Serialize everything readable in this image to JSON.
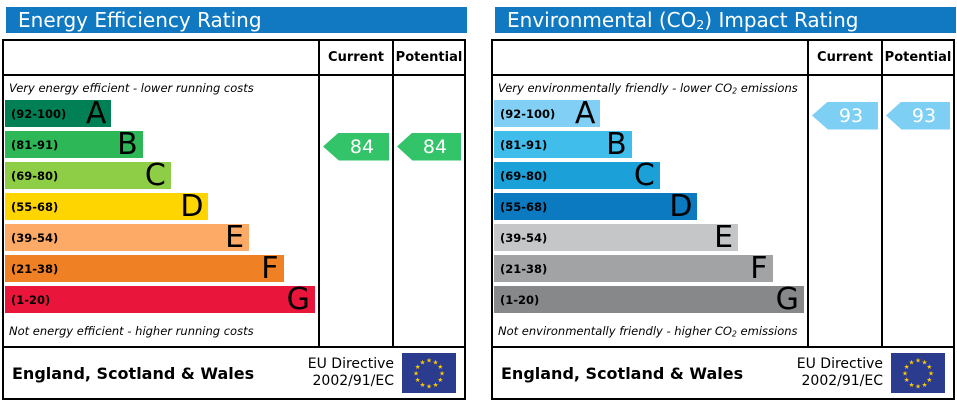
{
  "colors": {
    "header_blue": "#1079c2",
    "border_black": "#000000",
    "eu_flag_blue": "#2b3c8f",
    "eu_star_yellow": "#ffcc00",
    "arrow_text_white": "#ffffff"
  },
  "panels": [
    {
      "title": {
        "pre": "Energy Efficiency Rating",
        "sub": "",
        "post": ""
      },
      "columns": {
        "current": "Current",
        "potential": "Potential"
      },
      "captions": {
        "top": {
          "pre": "Very energy efficient - lower running costs",
          "sub": "",
          "post": ""
        },
        "bottom": {
          "pre": "Not energy efficient - higher running costs",
          "sub": "",
          "post": ""
        }
      },
      "bands": [
        {
          "range": "(92-100)",
          "letter": "A",
          "color": "#008054",
          "width_pct": 34
        },
        {
          "range": "(81-91)",
          "letter": "B",
          "color": "#2db757",
          "width_pct": 44
        },
        {
          "range": "(69-80)",
          "letter": "C",
          "color": "#8dce46",
          "width_pct": 53
        },
        {
          "range": "(55-68)",
          "letter": "D",
          "color": "#ffd500",
          "width_pct": 65
        },
        {
          "range": "(39-54)",
          "letter": "E",
          "color": "#fcaa65",
          "width_pct": 78
        },
        {
          "range": "(21-38)",
          "letter": "F",
          "color": "#ef8023",
          "width_pct": 89
        },
        {
          "range": "(1-20)",
          "letter": "G",
          "color": "#e9153b",
          "width_pct": 99
        }
      ],
      "current": {
        "value": "84",
        "band_index": 1,
        "color": "#33c368"
      },
      "potential": {
        "value": "84",
        "band_index": 1,
        "color": "#33c368"
      },
      "footer": {
        "region": "England, Scotland & Wales",
        "directive_line1": "EU Directive",
        "directive_line2": "2002/91/EC"
      }
    },
    {
      "title": {
        "pre": "Environmental (CO",
        "sub": "2",
        "post": ") Impact Rating"
      },
      "columns": {
        "current": "Current",
        "potential": "Potential"
      },
      "captions": {
        "top": {
          "pre": "Very environmentally friendly - lower CO",
          "sub": "2",
          "post": " emissions"
        },
        "bottom": {
          "pre": "Not environmentally friendly - higher CO",
          "sub": "2",
          "post": " emissions"
        }
      },
      "bands": [
        {
          "range": "(92-100)",
          "letter": "A",
          "color": "#81cff4",
          "width_pct": 34
        },
        {
          "range": "(81-91)",
          "letter": "B",
          "color": "#41bdec",
          "width_pct": 44
        },
        {
          "range": "(69-80)",
          "letter": "C",
          "color": "#1ba0d8",
          "width_pct": 53
        },
        {
          "range": "(55-68)",
          "letter": "D",
          "color": "#0c7ac0",
          "width_pct": 65
        },
        {
          "range": "(39-54)",
          "letter": "E",
          "color": "#c5c6c8",
          "width_pct": 78
        },
        {
          "range": "(21-38)",
          "letter": "F",
          "color": "#a2a3a5",
          "width_pct": 89
        },
        {
          "range": "(1-20)",
          "letter": "G",
          "color": "#87888a",
          "width_pct": 99
        }
      ],
      "current": {
        "value": "93",
        "band_index": 0,
        "color": "#7ecff4"
      },
      "potential": {
        "value": "93",
        "band_index": 0,
        "color": "#7ecff4"
      },
      "footer": {
        "region": "England, Scotland & Wales",
        "directive_line1": "EU Directive",
        "directive_line2": "2002/91/EC"
      }
    }
  ],
  "chart_data": [
    {
      "type": "bar",
      "title": "Energy Efficiency Rating",
      "orientation": "horizontal",
      "categories": [
        "A (92-100)",
        "B (81-91)",
        "C (69-80)",
        "D (55-68)",
        "E (39-54)",
        "F (21-38)",
        "G (1-20)"
      ],
      "bar_lengths_pct": [
        34,
        44,
        53,
        65,
        78,
        89,
        99
      ],
      "band_colors": [
        "#008054",
        "#2db757",
        "#8dce46",
        "#ffd500",
        "#fcaa65",
        "#ef8023",
        "#e9153b"
      ],
      "current_value": 84,
      "current_band": "B",
      "potential_value": 84,
      "potential_band": "B",
      "top_note": "Very energy efficient - lower running costs",
      "bottom_note": "Not energy efficient - higher running costs",
      "footer": "England, Scotland & Wales | EU Directive 2002/91/EC"
    },
    {
      "type": "bar",
      "title": "Environmental (CO2) Impact Rating",
      "orientation": "horizontal",
      "categories": [
        "A (92-100)",
        "B (81-91)",
        "C (69-80)",
        "D (55-68)",
        "E (39-54)",
        "F (21-38)",
        "G (1-20)"
      ],
      "bar_lengths_pct": [
        34,
        44,
        53,
        65,
        78,
        89,
        99
      ],
      "band_colors": [
        "#81cff4",
        "#41bdec",
        "#1ba0d8",
        "#0c7ac0",
        "#c5c6c8",
        "#a2a3a5",
        "#87888a"
      ],
      "current_value": 93,
      "current_band": "A",
      "potential_value": 93,
      "potential_band": "A",
      "top_note": "Very environmentally friendly - lower CO2 emissions",
      "bottom_note": "Not environmentally friendly - higher CO2 emissions",
      "footer": "England, Scotland & Wales | EU Directive 2002/91/EC"
    }
  ]
}
